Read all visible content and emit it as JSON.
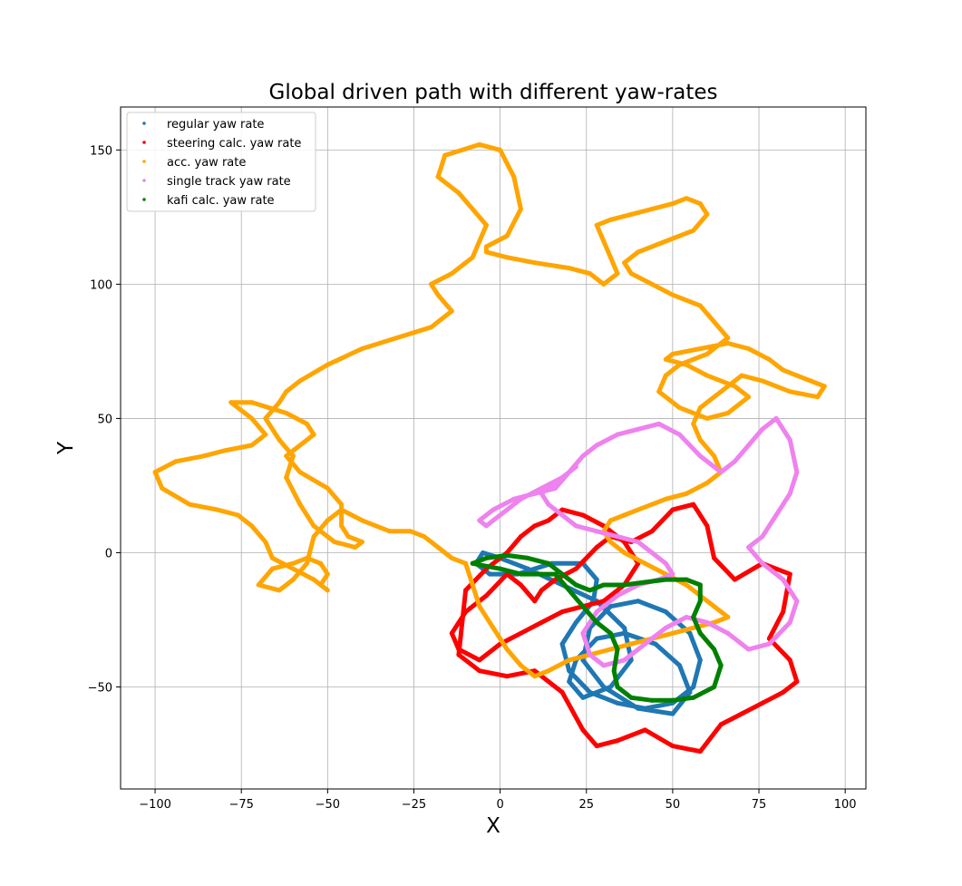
{
  "chart_data": {
    "type": "scatter",
    "title": "Global driven path with different yaw-rates",
    "xlabel": "X",
    "ylabel": "Y",
    "xlim": [
      -110,
      106
    ],
    "ylim": [
      -88,
      166
    ],
    "xticks": [
      -100,
      -75,
      -50,
      -25,
      0,
      25,
      50,
      75,
      100
    ],
    "yticks": [
      -50,
      0,
      50,
      100,
      150
    ],
    "grid": true,
    "legend_position": "top-left",
    "series": [
      {
        "name": "regular yaw rate",
        "color": "#1f77b4",
        "x": [
          -7,
          -3,
          5,
          15,
          24,
          28,
          27,
          22,
          18,
          20,
          26,
          34,
          42,
          50,
          56,
          58,
          55,
          48,
          40,
          32,
          26,
          24,
          30,
          40,
          50,
          55,
          52,
          45,
          36,
          28,
          22,
          20,
          24,
          32,
          38,
          36,
          28,
          18,
          8,
          0,
          -5,
          -7
        ],
        "y": [
          -4,
          -8,
          -8,
          -4,
          -4,
          -10,
          -18,
          -26,
          -34,
          -44,
          -52,
          -56,
          -58,
          -56,
          -50,
          -40,
          -30,
          -22,
          -18,
          -20,
          -28,
          -40,
          -50,
          -58,
          -60,
          -52,
          -42,
          -34,
          -30,
          -32,
          -40,
          -48,
          -54,
          -50,
          -40,
          -28,
          -18,
          -12,
          -6,
          -2,
          0,
          -4
        ]
      },
      {
        "name": "steering calc. yaw rate",
        "color": "#ff0000",
        "x": [
          -12,
          -6,
          2,
          10,
          18,
          24,
          28,
          34,
          42,
          50,
          58,
          64,
          70,
          76,
          82,
          86,
          84,
          78,
          82,
          84,
          76,
          68,
          62,
          60,
          56,
          50,
          44,
          38,
          32,
          28,
          22,
          16,
          12,
          10,
          6,
          2,
          -4,
          -10,
          -14,
          -12,
          -6,
          0,
          6,
          12,
          18,
          24,
          30,
          36,
          40,
          36,
          30,
          24,
          18,
          14,
          10,
          6,
          2,
          -4,
          -10,
          -12
        ],
        "y": [
          -38,
          -44,
          -46,
          -44,
          -52,
          -66,
          -72,
          -70,
          -66,
          -72,
          -74,
          -64,
          -60,
          -56,
          -52,
          -48,
          -40,
          -32,
          -22,
          -8,
          -4,
          -10,
          -2,
          10,
          18,
          16,
          8,
          4,
          6,
          2,
          -6,
          -10,
          -14,
          -18,
          -12,
          -8,
          -16,
          -22,
          -30,
          -36,
          -40,
          -34,
          -30,
          -26,
          -22,
          -20,
          -18,
          -12,
          -4,
          4,
          10,
          14,
          16,
          12,
          10,
          6,
          0,
          -6,
          -14,
          -38
        ]
      },
      {
        "name": "acc. yaw rate",
        "color": "#ffa500",
        "x": [
          -10,
          -14,
          -18,
          -22,
          -26,
          -32,
          -40,
          -46,
          -50,
          -54,
          -56,
          -60,
          -64,
          -70,
          -66,
          -60,
          -56,
          -52,
          -50,
          -52,
          -50,
          -54,
          -60,
          -66,
          -68,
          -72,
          -76,
          -82,
          -90,
          -98,
          -100,
          -94,
          -86,
          -80,
          -72,
          -68,
          -72,
          -78,
          -72,
          -62,
          -56,
          -54,
          -58,
          -62,
          -58,
          -50,
          -46,
          -46,
          -44,
          -40,
          -42,
          -48,
          -54,
          -58,
          -62,
          -60,
          -64,
          -68,
          -64,
          -62,
          -58,
          -50,
          -40,
          -30,
          -20,
          -14,
          -18,
          -20,
          -14,
          -8,
          -6,
          -4,
          -8,
          -12,
          -18,
          -16,
          -6,
          0,
          4,
          6,
          2,
          -4,
          -4,
          2,
          10,
          20,
          26,
          30,
          34,
          32,
          30,
          28,
          32,
          38,
          44,
          50,
          54,
          58,
          60,
          56,
          48,
          40,
          36,
          38,
          44,
          50,
          58,
          62,
          66,
          60,
          52,
          48,
          46,
          52,
          60,
          66,
          72,
          68,
          60,
          54,
          48,
          50,
          58,
          66,
          72,
          78,
          82,
          86,
          90,
          94,
          92,
          84,
          76,
          70,
          64,
          58,
          56,
          58,
          62,
          64,
          60,
          54,
          48,
          44,
          40,
          36,
          32,
          30,
          32,
          36,
          42,
          48,
          54,
          58,
          62,
          66,
          62,
          56,
          50,
          44,
          38,
          32,
          26,
          20,
          14,
          10,
          6,
          2,
          -2,
          -6,
          -8,
          -10
        ],
        "y": [
          -4,
          -2,
          2,
          6,
          8,
          8,
          12,
          16,
          12,
          6,
          -4,
          -10,
          -14,
          -12,
          -6,
          -4,
          -2,
          -4,
          -8,
          -12,
          -14,
          -10,
          -6,
          -2,
          4,
          10,
          14,
          16,
          18,
          24,
          30,
          34,
          36,
          38,
          40,
          44,
          50,
          56,
          56,
          52,
          48,
          44,
          40,
          36,
          30,
          24,
          18,
          10,
          6,
          4,
          2,
          4,
          10,
          18,
          28,
          36,
          42,
          50,
          56,
          60,
          64,
          70,
          76,
          80,
          84,
          90,
          96,
          100,
          104,
          110,
          116,
          122,
          128,
          134,
          140,
          148,
          152,
          150,
          140,
          128,
          118,
          114,
          112,
          110,
          108,
          106,
          104,
          100,
          104,
          110,
          116,
          122,
          124,
          126,
          128,
          130,
          132,
          130,
          126,
          120,
          116,
          112,
          108,
          104,
          100,
          96,
          92,
          86,
          80,
          74,
          70,
          66,
          60,
          54,
          50,
          52,
          58,
          62,
          66,
          70,
          72,
          74,
          76,
          78,
          76,
          72,
          68,
          66,
          64,
          62,
          58,
          60,
          64,
          66,
          60,
          54,
          48,
          42,
          36,
          30,
          26,
          22,
          20,
          18,
          16,
          14,
          12,
          8,
          4,
          0,
          -4,
          -8,
          -12,
          -16,
          -20,
          -24,
          -26,
          -28,
          -30,
          -32,
          -34,
          -36,
          -38,
          -40,
          -44,
          -46,
          -42,
          -36,
          -28,
          -20,
          -12,
          -4
        ]
      },
      {
        "name": "single track yaw rate",
        "color": "#ee82ee",
        "x": [
          -6,
          -2,
          4,
          10,
          16,
          20,
          24,
          28,
          34,
          40,
          46,
          52,
          58,
          64,
          68,
          72,
          76,
          80,
          84,
          86,
          84,
          80,
          76,
          72,
          76,
          82,
          86,
          84,
          78,
          72,
          66,
          60,
          54,
          48,
          42,
          36,
          30,
          26,
          24,
          28,
          34,
          40,
          46,
          50,
          48,
          44,
          40,
          34,
          28,
          22,
          18,
          14,
          12,
          16,
          20,
          22,
          18,
          12,
          6,
          2,
          -2,
          -4,
          -6
        ],
        "y": [
          12,
          16,
          20,
          22,
          24,
          30,
          36,
          40,
          44,
          46,
          48,
          44,
          36,
          30,
          34,
          40,
          46,
          50,
          42,
          30,
          22,
          14,
          6,
          2,
          -4,
          -10,
          -18,
          -26,
          -34,
          -36,
          -30,
          -26,
          -24,
          -28,
          -34,
          -40,
          -42,
          -38,
          -30,
          -22,
          -16,
          -12,
          -10,
          -8,
          -4,
          0,
          4,
          6,
          8,
          10,
          14,
          18,
          22,
          26,
          30,
          32,
          28,
          24,
          20,
          16,
          12,
          10,
          12
        ]
      },
      {
        "name": "kafi calc. yaw rate",
        "color": "#008000",
        "x": [
          -8,
          -4,
          2,
          8,
          14,
          18,
          22,
          26,
          30,
          36,
          42,
          48,
          54,
          58,
          58,
          56,
          58,
          62,
          64,
          62,
          56,
          50,
          44,
          38,
          34,
          33,
          34,
          32,
          28,
          24,
          20,
          16,
          12,
          6,
          0,
          -4,
          -8
        ],
        "y": [
          -4,
          -2,
          -1,
          -2,
          -4,
          -8,
          -12,
          -14,
          -12,
          -12,
          -11,
          -10,
          -10,
          -12,
          -18,
          -24,
          -30,
          -36,
          -42,
          -50,
          -54,
          -55,
          -55,
          -54,
          -50,
          -44,
          -36,
          -30,
          -26,
          -20,
          -14,
          -8,
          -8,
          -8,
          -6,
          -5,
          -4
        ]
      }
    ]
  }
}
